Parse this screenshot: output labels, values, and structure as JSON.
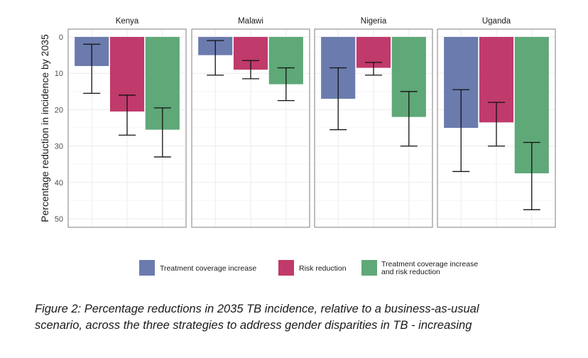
{
  "chart_data": {
    "type": "bar",
    "ylabel": "Percentage reduction in incidence by 2035",
    "yticks": [
      0,
      10,
      20,
      30,
      40,
      50
    ],
    "ylim": [
      0,
      52
    ],
    "y_reversed": true,
    "grid": true,
    "legend_position": "bottom",
    "facets": [
      "Kenya",
      "Malawi",
      "Nigeria",
      "Uganda"
    ],
    "series": [
      {
        "name": "Treatment coverage increase",
        "color": "#6B7BAE",
        "values": [
          8,
          5,
          17,
          25
        ],
        "lower": [
          2,
          1,
          8.5,
          14.5
        ],
        "upper": [
          15.5,
          10.5,
          25.5,
          37
        ]
      },
      {
        "name": "Risk reduction",
        "color": "#C03A6B",
        "values": [
          20.5,
          9,
          8.5,
          23.5
        ],
        "lower": [
          16,
          6.5,
          7,
          18
        ],
        "upper": [
          27,
          11.5,
          10.5,
          30
        ]
      },
      {
        "name": "Treatment coverage increase and risk reduction",
        "color": "#5FA878",
        "values": [
          25.5,
          13,
          22,
          37.5
        ],
        "lower": [
          19.5,
          8.5,
          15,
          29
        ],
        "upper": [
          33,
          17.5,
          30,
          47.5
        ]
      }
    ],
    "legend_labels": [
      [
        "Treatment coverage increase"
      ],
      [
        "Risk reduction"
      ],
      [
        "Treatment coverage increase",
        "and risk reduction"
      ]
    ]
  },
  "caption": {
    "line1": "Figure 2: Percentage reductions in 2035 TB incidence, relative to a business-as-usual",
    "line2": "scenario, across the three strategies to address gender disparities in TB - increasing"
  }
}
